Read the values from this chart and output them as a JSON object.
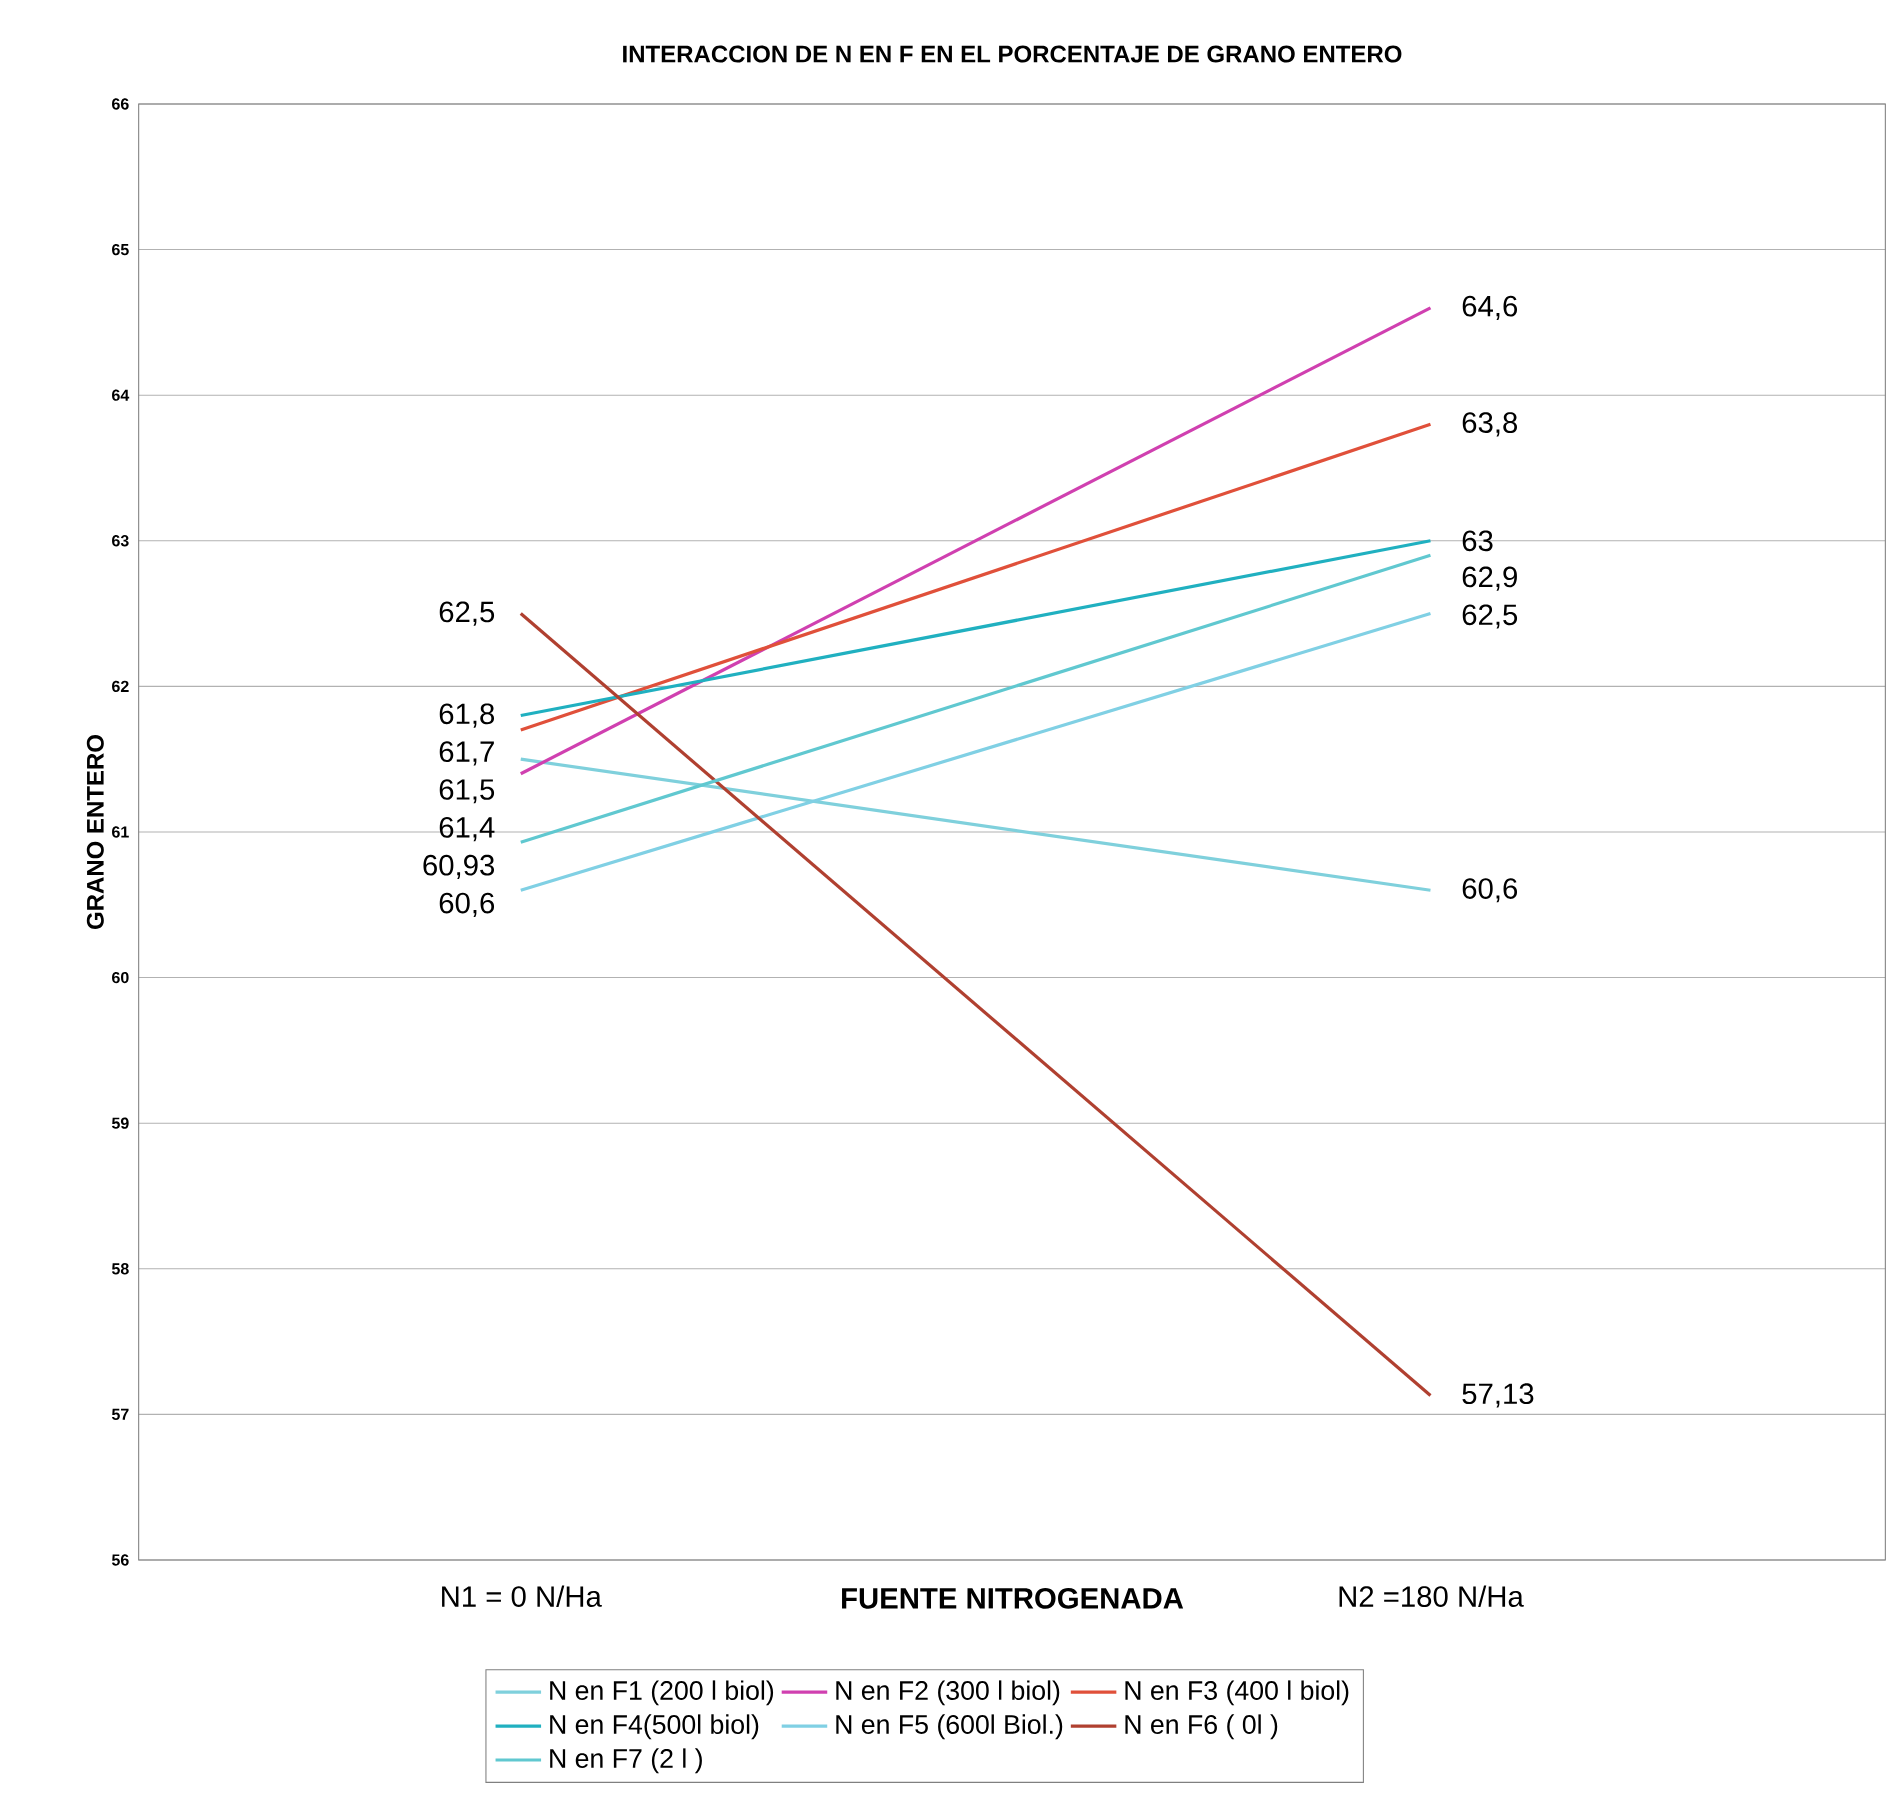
{
  "chart_data": {
    "type": "line",
    "title": "INTERACCION DE N EN F EN EL PORCENTAJE DE GRANO ENTERO",
    "xlabel": "FUENTE NITROGENADA",
    "ylabel": "GRANO ENTERO",
    "categories": [
      "N1 = 0 N/Ha",
      "N2 =180 N/Ha"
    ],
    "series": [
      {
        "name": "N  en F1 (200 l  biol)",
        "color": "#7fd0dc",
        "values": [
          61.5,
          60.6
        ],
        "value_labels": [
          "61,5",
          "60,6"
        ]
      },
      {
        "name": "N  en F2 (300 l biol)",
        "color": "#d040b0",
        "values": [
          61.4,
          64.6
        ],
        "value_labels": [
          "61,4",
          "64,6"
        ]
      },
      {
        "name": "N  en F3 (400 l biol)",
        "color": "#e0503a",
        "values": [
          61.7,
          63.8
        ],
        "value_labels": [
          "61,7",
          "63,8"
        ]
      },
      {
        "name": "N  en F4(500l biol)",
        "color": "#20b0c0",
        "values": [
          61.8,
          63
        ],
        "value_labels": [
          "61,8",
          "63"
        ]
      },
      {
        "name": "N  en F5 (600l Biol.)",
        "color": "#80d0e4",
        "values": [
          60.6,
          62.5
        ],
        "value_labels": [
          "60,6",
          "62,5"
        ]
      },
      {
        "name": "N  en F6 ( 0l )",
        "color": "#b04030",
        "values": [
          62.5,
          57.13
        ],
        "value_labels": [
          "62,5",
          "57,13"
        ]
      },
      {
        "name": "N  en F7 (2 l )",
        "color": "#60c8d0",
        "values": [
          60.93,
          62.9
        ],
        "value_labels": [
          "60,93",
          "62,9"
        ]
      }
    ],
    "ylim": [
      56,
      66
    ],
    "yticks": [
      56,
      57,
      58,
      59,
      60,
      61,
      62,
      63,
      64,
      65,
      66
    ],
    "grid": "y",
    "legend": "bottom",
    "marker": "none"
  }
}
